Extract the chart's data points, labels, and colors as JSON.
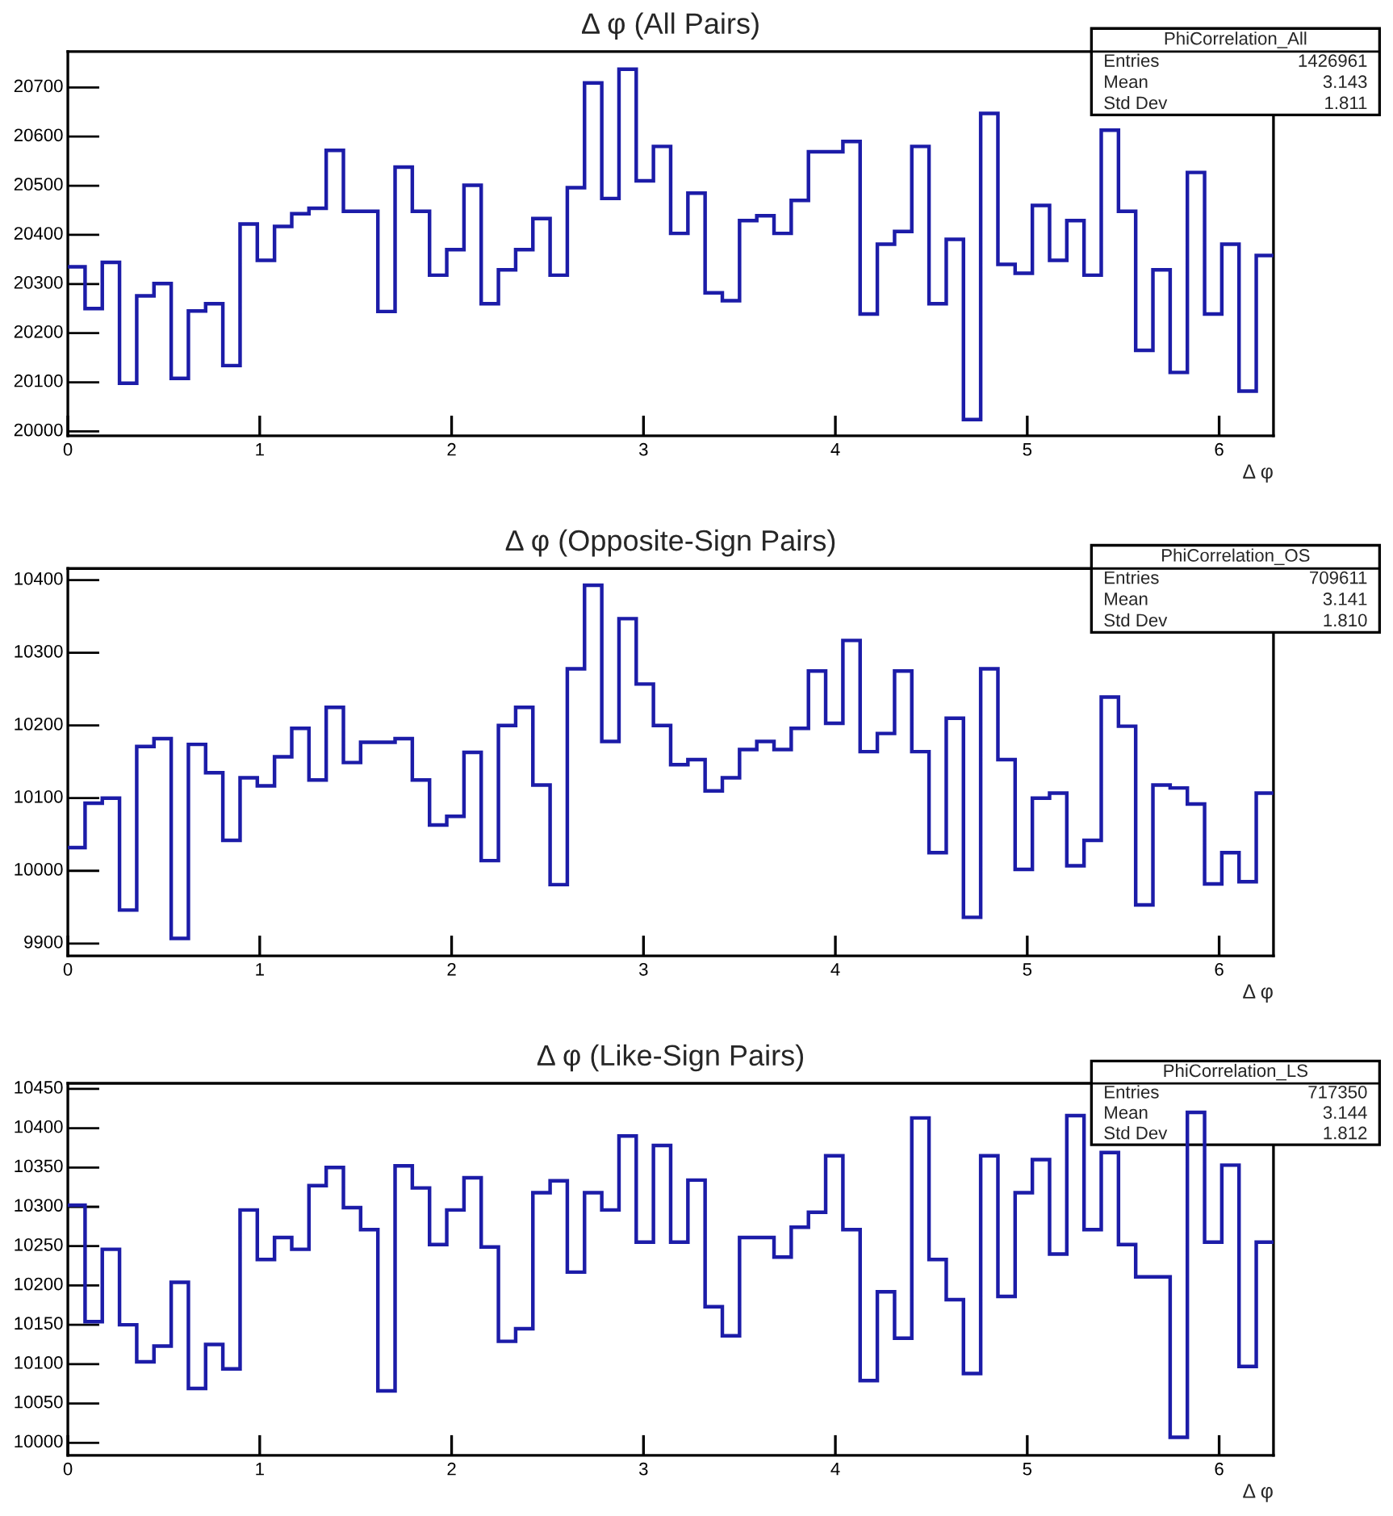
{
  "chart_data": [
    {
      "type": "histogram",
      "title": "Δ φ (All Pairs)",
      "xlabel": "Δ φ",
      "color": "#1c1ca8",
      "annotations": [
        "PhiCorrelation_All",
        "Entries",
        "1426961",
        "Mean",
        "3.143",
        "Std Dev",
        "1.811"
      ],
      "bins": [
        0,
        0.0898,
        0.1795,
        0.2693,
        0.359,
        0.4488,
        0.5386,
        0.6283,
        0.7181,
        0.8078,
        0.8976,
        0.9874,
        1.0771,
        1.1669,
        1.2566,
        1.3464,
        1.4362,
        1.5259,
        1.6157,
        1.7054,
        1.7952,
        1.885,
        1.9747,
        2.0645,
        2.1542,
        2.244,
        2.3338,
        2.4235,
        2.5133,
        2.603,
        2.6928,
        2.7826,
        2.8723,
        2.9621,
        3.0518,
        3.1416,
        3.2314,
        3.3211,
        3.4109,
        3.5006,
        3.5904,
        3.6802,
        3.7699,
        3.8597,
        3.9494,
        4.0392,
        4.129,
        4.2187,
        4.3085,
        4.3982,
        4.488,
        4.5778,
        4.6675,
        4.7573,
        4.8471,
        4.9368,
        5.0266,
        5.1163,
        5.2061,
        5.2959,
        5.3856,
        5.4754,
        5.5651,
        5.6549,
        5.7447,
        5.8344,
        5.9242,
        6.0139,
        6.1037,
        6.1934,
        6.2832
      ],
      "values": [
        20335,
        20250,
        20344,
        20098,
        20276,
        20301,
        20108,
        20245,
        20260,
        20134,
        20422,
        20348,
        20417,
        20443,
        20454,
        20572,
        20448,
        20448,
        20244,
        20538,
        20448,
        20318,
        20370,
        20501,
        20260,
        20329,
        20370,
        20433,
        20318,
        20496,
        20709,
        20474,
        20737,
        20510,
        20580,
        20403,
        20485,
        20282,
        20266,
        20429,
        20439,
        20403,
        20470,
        20569,
        20569,
        20590,
        20239,
        20381,
        20407,
        20580,
        20260,
        20391,
        20024,
        20647,
        20340,
        20322,
        20460,
        20348,
        20429,
        20318,
        20613,
        20448,
        20165,
        20329,
        20120,
        20527,
        20239,
        20381,
        20082,
        20358
      ],
      "xlim": [
        0,
        6.2832
      ],
      "ylim": [
        19991,
        20773
      ],
      "xticks": [
        0,
        1,
        2,
        3,
        4,
        5,
        6
      ],
      "yticks": [
        20000,
        20100,
        20200,
        20300,
        20400,
        20500,
        20600,
        20700
      ]
    },
    {
      "type": "histogram",
      "title": "Δ φ (Opposite-Sign Pairs)",
      "xlabel": "Δ φ",
      "color": "#1c1ca8",
      "annotations": [
        "PhiCorrelation_OS",
        "Entries",
        "709611",
        "Mean",
        "3.141",
        "Std Dev",
        "1.810"
      ],
      "bins": [
        0,
        0.0898,
        0.1795,
        0.2693,
        0.359,
        0.4488,
        0.5386,
        0.6283,
        0.7181,
        0.8078,
        0.8976,
        0.9874,
        1.0771,
        1.1669,
        1.2566,
        1.3464,
        1.4362,
        1.5259,
        1.6157,
        1.7054,
        1.7952,
        1.885,
        1.9747,
        2.0645,
        2.1542,
        2.244,
        2.3338,
        2.4235,
        2.5133,
        2.603,
        2.6928,
        2.7826,
        2.8723,
        2.9621,
        3.0518,
        3.1416,
        3.2314,
        3.3211,
        3.4109,
        3.5006,
        3.5904,
        3.6802,
        3.7699,
        3.8597,
        3.9494,
        4.0392,
        4.129,
        4.2187,
        4.3085,
        4.3982,
        4.488,
        4.5778,
        4.6675,
        4.7573,
        4.8471,
        4.9368,
        5.0266,
        5.1163,
        5.2061,
        5.2959,
        5.3856,
        5.4754,
        5.5651,
        5.6549,
        5.7447,
        5.8344,
        5.9242,
        6.0139,
        6.1037,
        6.1934,
        6.2832
      ],
      "values": [
        10032,
        10093,
        10100,
        9946,
        10171,
        10182,
        9907,
        10174,
        10135,
        10042,
        10128,
        10117,
        10157,
        10196,
        10125,
        10225,
        10149,
        10177,
        10177,
        10182,
        10125,
        10063,
        10075,
        10163,
        10014,
        10200,
        10225,
        10118,
        9981,
        10278,
        10393,
        10178,
        10347,
        10257,
        10200,
        10146,
        10153,
        10110,
        10128,
        10167,
        10178,
        10167,
        10196,
        10275,
        10203,
        10317,
        10164,
        10189,
        10275,
        10164,
        10025,
        10210,
        9936,
        10278,
        10153,
        10002,
        10100,
        10107,
        10007,
        10042,
        10239,
        10199,
        9953,
        10118,
        10114,
        10092,
        9982,
        10025,
        9985,
        10107
      ],
      "xlim": [
        0,
        6.2832
      ],
      "ylim": [
        9883,
        10416
      ],
      "xticks": [
        0,
        1,
        2,
        3,
        4,
        5,
        6
      ],
      "yticks": [
        9900,
        10000,
        10100,
        10200,
        10300,
        10400
      ]
    },
    {
      "type": "histogram",
      "title": "Δ φ (Like-Sign Pairs)",
      "xlabel": "Δ φ",
      "color": "#1c1ca8",
      "annotations": [
        "PhiCorrelation_LS",
        "Entries",
        "717350",
        "Mean",
        "3.144",
        "Std Dev",
        "1.812"
      ],
      "bins": [
        0,
        0.0898,
        0.1795,
        0.2693,
        0.359,
        0.4488,
        0.5386,
        0.6283,
        0.7181,
        0.8078,
        0.8976,
        0.9874,
        1.0771,
        1.1669,
        1.2566,
        1.3464,
        1.4362,
        1.5259,
        1.6157,
        1.7054,
        1.7952,
        1.885,
        1.9747,
        2.0645,
        2.1542,
        2.244,
        2.3338,
        2.4235,
        2.5133,
        2.603,
        2.6928,
        2.7826,
        2.8723,
        2.9621,
        3.0518,
        3.1416,
        3.2314,
        3.3211,
        3.4109,
        3.5006,
        3.5904,
        3.6802,
        3.7699,
        3.8597,
        3.9494,
        4.0392,
        4.129,
        4.2187,
        4.3085,
        4.3982,
        4.488,
        4.5778,
        4.6675,
        4.7573,
        4.8471,
        4.9368,
        5.0266,
        5.1163,
        5.2061,
        5.2959,
        5.3856,
        5.4754,
        5.5651,
        5.6549,
        5.7447,
        5.8344,
        5.9242,
        6.0139,
        6.1037,
        6.1934,
        6.2832
      ],
      "values": [
        10302,
        10154,
        10246,
        10150,
        10103,
        10123,
        10204,
        10069,
        10125,
        10094,
        10296,
        10233,
        10261,
        10246,
        10327,
        10350,
        10299,
        10271,
        10066,
        10352,
        10324,
        10252,
        10296,
        10337,
        10249,
        10129,
        10145,
        10318,
        10333,
        10217,
        10318,
        10296,
        10390,
        10255,
        10378,
        10255,
        10334,
        10173,
        10136,
        10261,
        10261,
        10236,
        10274,
        10293,
        10365,
        10271,
        10079,
        10192,
        10133,
        10413,
        10233,
        10182,
        10088,
        10365,
        10186,
        10318,
        10360,
        10240,
        10416,
        10271,
        10369,
        10252,
        10211,
        10211,
        10007,
        10420,
        10255,
        10353,
        10097,
        10255
      ],
      "xlim": [
        0,
        6.2832
      ],
      "ylim": [
        9984,
        10457
      ],
      "xticks": [
        0,
        1,
        2,
        3,
        4,
        5,
        6
      ],
      "yticks": [
        10000,
        10050,
        10100,
        10150,
        10200,
        10250,
        10300,
        10350,
        10400,
        10450
      ]
    }
  ]
}
